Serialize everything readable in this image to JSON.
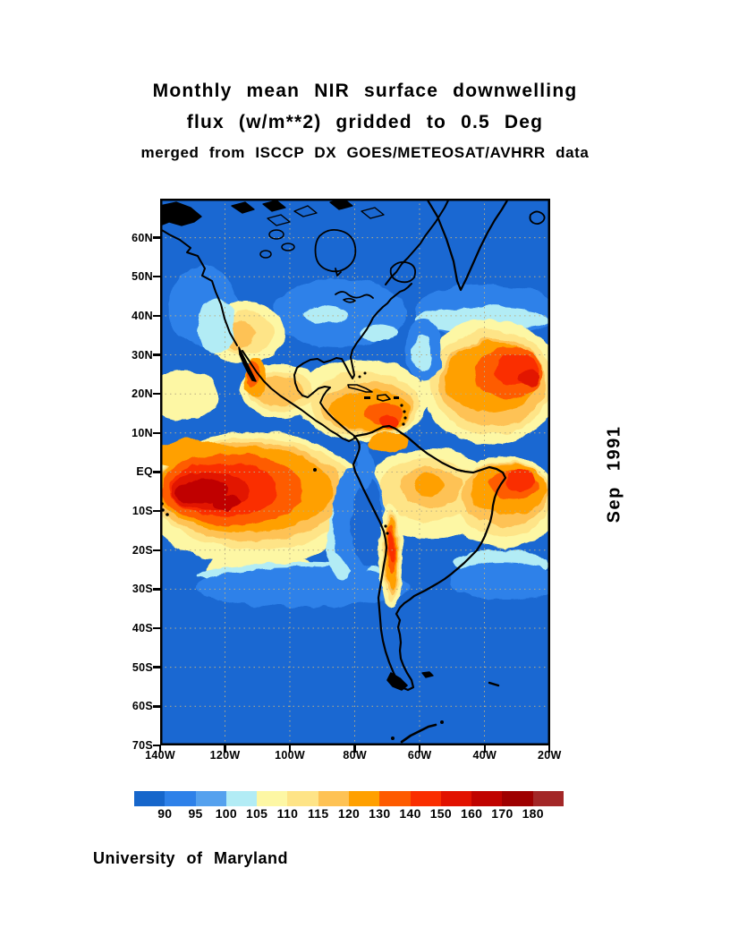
{
  "title": {
    "line1": "Monthly mean NIR surface downwelling",
    "line2": "flux (w/m**2) gridded to 0.5 Deg",
    "line3": "merged from ISCCP DX GOES/METEOSAT/AVHRR data"
  },
  "side_label": "Sep 1991",
  "credit": "University of Maryland",
  "map": {
    "lat_ticks": [
      "60N",
      "50N",
      "40N",
      "30N",
      "20N",
      "10N",
      "EQ",
      "10S",
      "20S",
      "30S",
      "40S",
      "50S",
      "60S",
      "70S"
    ],
    "lon_ticks": [
      "140W",
      "120W",
      "100W",
      "80W",
      "60W",
      "40W",
      "20W"
    ],
    "ocean_color": "#1a68d2",
    "grid_color": "#b9ae85",
    "frame_color": "#000000",
    "coast_color": "#000000"
  },
  "colorbar": {
    "labels": [
      "90",
      "95",
      "100",
      "105",
      "110",
      "115",
      "120",
      "130",
      "140",
      "150",
      "160",
      "170",
      "180"
    ],
    "colors": [
      "#1666cb",
      "#2e81e9",
      "#55a1ee",
      "#b2ecf5",
      "#fdf7a4",
      "#fee487",
      "#fec254",
      "#ffa000",
      "#fe5b00",
      "#fa2e00",
      "#e21200",
      "#c00300",
      "#9e0000",
      "#a32727"
    ]
  },
  "chart_data": {
    "type": "heatmap",
    "title": "Monthly mean NIR surface downwelling flux (w/m**2) gridded to 0.5 Deg",
    "subtitle": "merged from ISCCP DX GOES/METEOSAT/AVHRR data",
    "date": "Sep 1991",
    "units": "w/m**2",
    "lon_range": [
      "140W",
      "20W"
    ],
    "lat_range": [
      "70N",
      "70S"
    ],
    "graticule": "dotted, every 10 deg latitude and 20 deg longitude",
    "colorbar_boundaries": [
      90,
      95,
      100,
      105,
      110,
      115,
      120,
      130,
      140,
      150,
      160,
      170,
      180
    ],
    "palette": [
      "#1666cb",
      "#2e81e9",
      "#55a1ee",
      "#b2ecf5",
      "#fdf7a4",
      "#fee487",
      "#fec254",
      "#ffa000",
      "#fe5b00",
      "#fa2e00",
      "#e21200",
      "#c00300",
      "#9e0000",
      "#a32727"
    ],
    "legend_position": "bottom",
    "features": [
      {
        "region": "Equatorial SE Pacific (0-15S, 140-100W)",
        "flux_w_m2": "150-180 (field maximum, dark red core)"
      },
      {
        "region": "Subtropical North Atlantic (10-30N, 55-20W)",
        "flux_w_m2": "130-160 (red-orange core near 20N)"
      },
      {
        "region": "Caribbean Sea and Gulf of Mexico",
        "flux_w_m2": "115-150"
      },
      {
        "region": "US Southwest and Mexican Plateau",
        "flux_w_m2": "105-130"
      },
      {
        "region": "Andes Altiplano strip (15-27S)",
        "flux_w_m2": "120-150"
      },
      {
        "region": "Amazon Basin",
        "flux_w_m2": "105-120"
      },
      {
        "region": "Equatorial South Atlantic (0-10S, 40-20W)",
        "flux_w_m2": "130-150"
      },
      {
        "region": "Peru-Chile coastal stratus zone",
        "flux_w_m2": "90-100 (blue wedge)"
      },
      {
        "region": "Canada, North Atlantic and oceans poleward of ~35 deg",
        "flux_w_m2": "90-95 (blue)"
      }
    ]
  }
}
